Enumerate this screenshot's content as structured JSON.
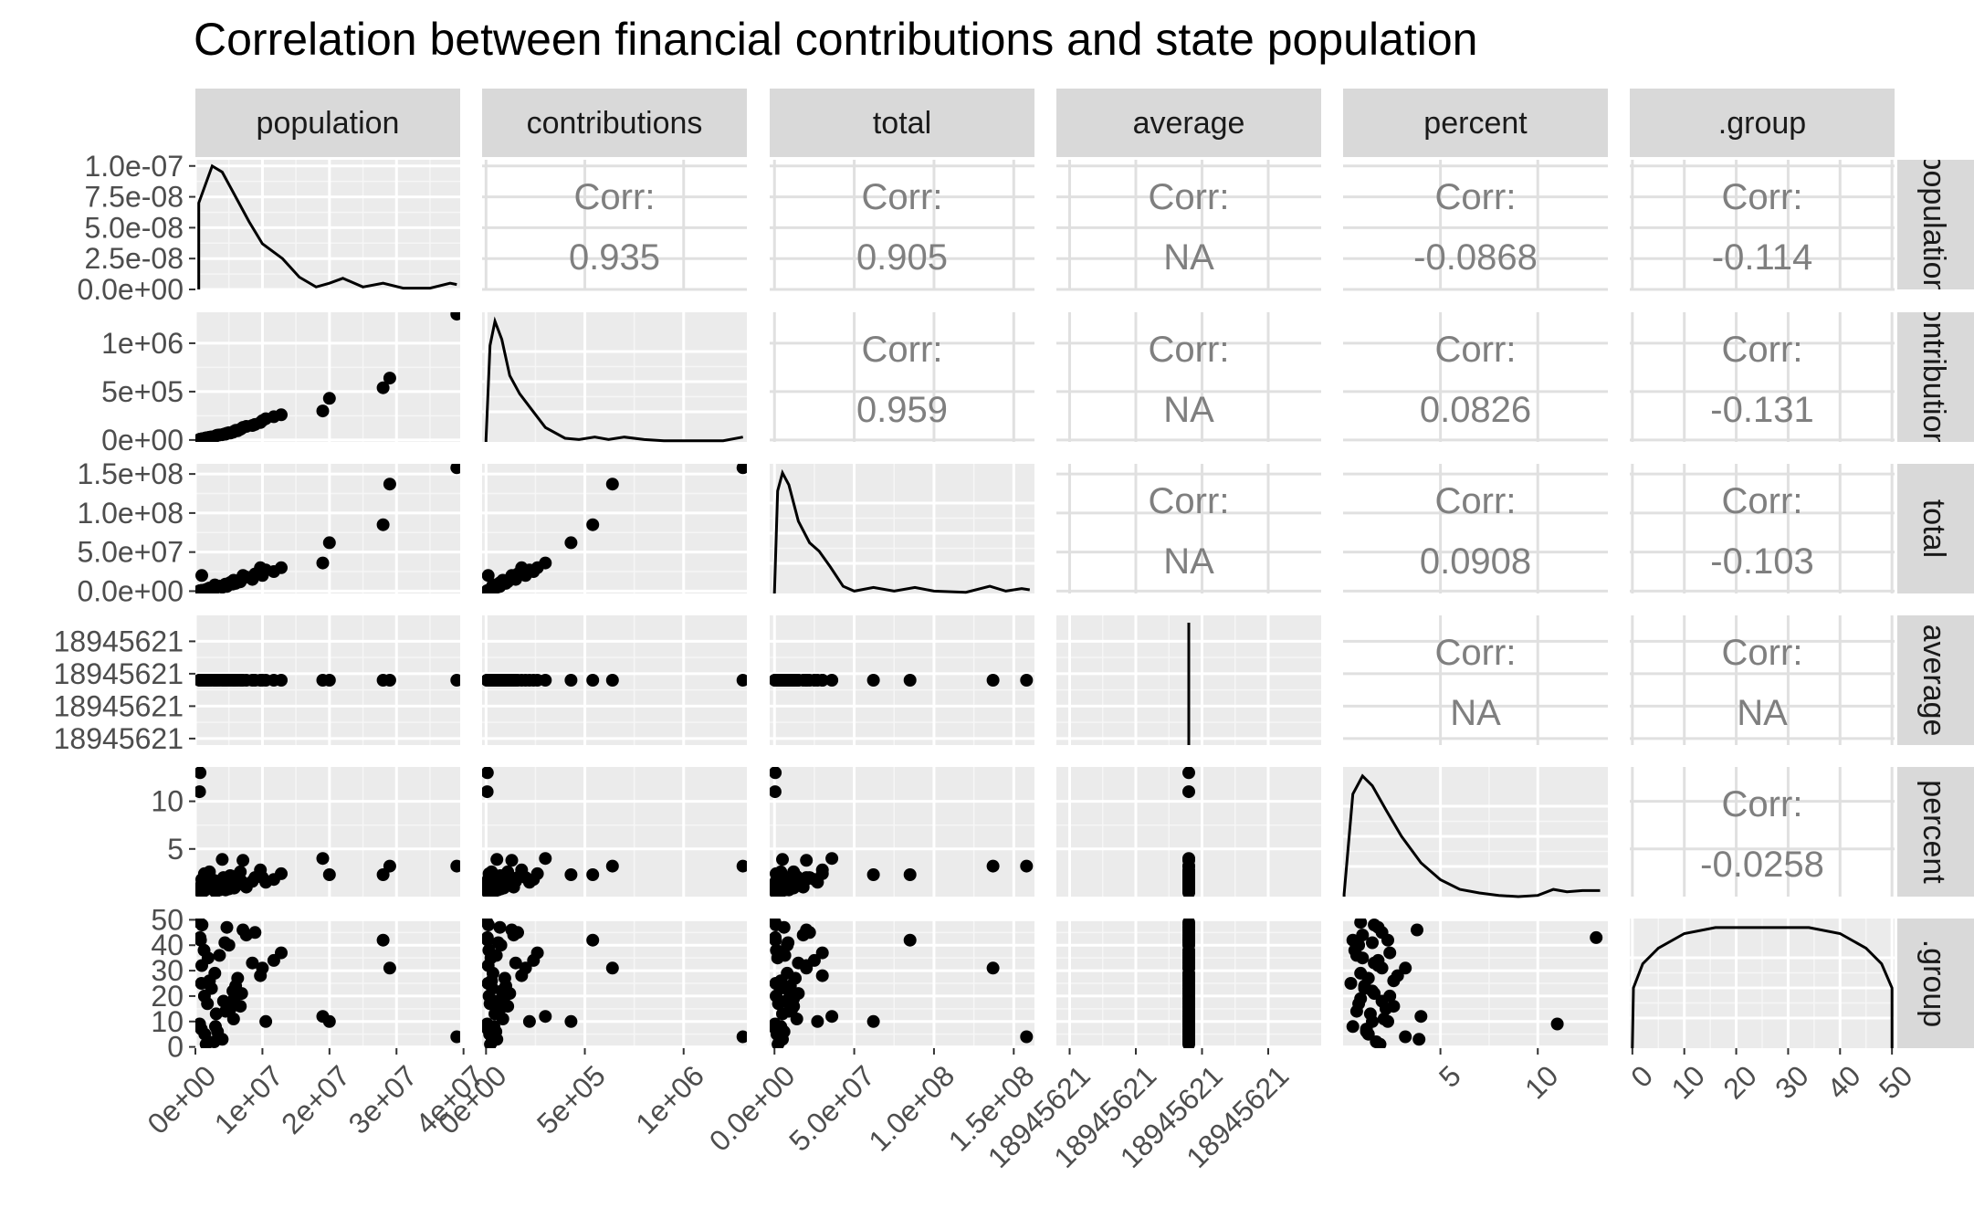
{
  "chart_data": {
    "type": "scatter",
    "subtype": "pairs-plot-matrix",
    "title": "Correlation between financial contributions and state population",
    "variables": [
      "population",
      "contributions",
      "total",
      "average",
      "percent",
      ".group"
    ],
    "row_strip_labels": [
      "population",
      "contributions",
      "total",
      "average",
      "percent",
      ".group"
    ],
    "corr_label": "Corr:",
    "correlations": [
      {
        "row": "contributions",
        "col": "population",
        "value": "0.935"
      },
      {
        "row": "total",
        "col": "population",
        "value": "0.905"
      },
      {
        "row": "average",
        "col": "population",
        "value": "NA"
      },
      {
        "row": "percent",
        "col": "population",
        "value": "-0.0868"
      },
      {
        "row": ".group",
        "col": "population",
        "value": "-0.114"
      },
      {
        "row": "total",
        "col": "contributions",
        "value": "0.959"
      },
      {
        "row": "average",
        "col": "contributions",
        "value": "NA"
      },
      {
        "row": "percent",
        "col": "contributions",
        "value": "0.0826"
      },
      {
        "row": ".group",
        "col": "contributions",
        "value": "-0.131"
      },
      {
        "row": "average",
        "col": "total",
        "value": "NA"
      },
      {
        "row": "percent",
        "col": "total",
        "value": "0.0908"
      },
      {
        "row": ".group",
        "col": "total",
        "value": "-0.103"
      },
      {
        "row": "percent",
        "col": "average",
        "value": "NA"
      },
      {
        "row": ".group",
        "col": "average",
        "value": "NA"
      },
      {
        "row": ".group",
        "col": "percent",
        "value": "-0.0258"
      }
    ],
    "axes": {
      "population": {
        "range": [
          0,
          39500000
        ],
        "ticks": [
          0,
          10000000,
          20000000,
          30000000,
          40000000
        ],
        "tick_labels": [
          "0e+00",
          "1e+07",
          "2e+07",
          "3e+07",
          "4e+07"
        ]
      },
      "contributions": {
        "range": [
          -20000,
          1320000
        ],
        "ticks": [
          0,
          500000,
          1000000
        ],
        "tick_labels": [
          "0e+00",
          "5e+05",
          "1e+06"
        ]
      },
      "total": {
        "range": [
          -3000000,
          163000000
        ],
        "ticks": [
          0,
          50000000,
          100000000,
          150000000
        ],
        "tick_labels": [
          "0.0e+00",
          "5.0e+07",
          "1.0e+08",
          "1.5e+08"
        ]
      },
      "average": {
        "range": [
          0,
          1
        ],
        "ticks": [
          0.05,
          0.3,
          0.55,
          0.8
        ],
        "tick_labels": [
          "18945621",
          "18945621",
          "18945621",
          "18945621"
        ]
      },
      "percent": {
        "range": [
          0,
          13.6
        ],
        "ticks": [
          5,
          10
        ],
        "tick_labels": [
          "5",
          "10"
        ]
      },
      ".group": {
        "range": [
          -0.5,
          50.5
        ],
        "ticks": [
          0,
          10,
          20,
          30,
          40,
          50
        ],
        "tick_labels": [
          "0",
          "10",
          "20",
          "30",
          "40",
          "50"
        ]
      }
    },
    "density_y_axis": {
      "range": [
        0,
        1.05e-07
      ],
      "ticks": [
        0,
        2.5e-08,
        5e-08,
        7.5e-08,
        1e-07
      ],
      "tick_labels": [
        "0.0e+00",
        "2.5e-08",
        "5.0e-08",
        "7.5e-08",
        "1.0e-07"
      ]
    },
    "densities": {
      "population": {
        "x": [
          500000,
          2500000,
          4000000,
          6000000,
          8000000,
          10000000,
          13000000,
          15500000,
          18000000,
          20000000,
          22000000,
          25000000,
          28000000,
          31000000,
          35000000,
          38000000,
          39000000
        ],
        "y": [
          7e-08,
          1e-07,
          9.5e-08,
          7.5e-08,
          5.5e-08,
          3.7e-08,
          2.5e-08,
          1e-08,
          2e-09,
          5e-09,
          9e-09,
          2e-09,
          5e-09,
          1e-09,
          1e-09,
          5e-09,
          4e-09
        ]
      },
      "contributions": {
        "x": [
          0,
          20000,
          45000,
          80000,
          120000,
          170000,
          230000,
          300000,
          400000,
          470000,
          550000,
          620000,
          700000,
          800000,
          900000,
          1000000,
          1100000,
          1200000,
          1300000
        ],
        "y": [
          0.02,
          0.8,
          1.0,
          0.85,
          0.55,
          0.4,
          0.27,
          0.12,
          0.03,
          0.02,
          0.04,
          0.02,
          0.04,
          0.02,
          0.01,
          0.01,
          0.01,
          0.01,
          0.04
        ]
      },
      "total": {
        "x": [
          0,
          2000000,
          5000000,
          9000000,
          15000000,
          22000000,
          28000000,
          35000000,
          43000000,
          50000000,
          62000000,
          75000000,
          88000000,
          100000000,
          120000000,
          135000000,
          145000000,
          155000000,
          160000000
        ],
        "y": [
          0,
          0.85,
          1.0,
          0.9,
          0.6,
          0.42,
          0.35,
          0.22,
          0.06,
          0.02,
          0.05,
          0.02,
          0.05,
          0.02,
          0.01,
          0.06,
          0.02,
          0.04,
          0.03
        ]
      },
      "percent": {
        "x": [
          0.05,
          0.5,
          1,
          1.5,
          2.2,
          3,
          4,
          5,
          6,
          7,
          8,
          9,
          10,
          10.8,
          11.5,
          12.3,
          13.2
        ],
        "y": [
          0.02,
          0.85,
          1.0,
          0.92,
          0.72,
          0.5,
          0.28,
          0.14,
          0.06,
          0.03,
          0.01,
          0.0,
          0.01,
          0.06,
          0.04,
          0.05,
          0.05
        ]
      },
      ".group": {
        "x": [
          0,
          0.2,
          2,
          5,
          10,
          16,
          25,
          34,
          40,
          45,
          48,
          50,
          50
        ],
        "y": [
          0,
          0.5,
          0.7,
          0.83,
          0.95,
          1.0,
          1.0,
          1.0,
          0.95,
          0.83,
          0.7,
          0.5,
          0
        ]
      }
    },
    "observations": [
      [
        39000000,
        1300000,
        158000000,
        0.5,
        3.2,
        4
      ],
      [
        29000000,
        640000,
        137000000,
        0.5,
        3.2,
        31
      ],
      [
        28000000,
        540000,
        85000000,
        0.5,
        2.3,
        42
      ],
      [
        20000000,
        430000,
        62000000,
        0.5,
        2.3,
        10
      ],
      [
        19000000,
        300000,
        36000000,
        0.5,
        4.0,
        12
      ],
      [
        12800000,
        260000,
        30000000,
        0.5,
        2.4,
        37
      ],
      [
        11700000,
        240000,
        25000000,
        0.5,
        1.8,
        34
      ],
      [
        10500000,
        220000,
        27000000,
        0.5,
        1.5,
        10
      ],
      [
        10000000,
        200000,
        20000000,
        0.5,
        2.0,
        31
      ],
      [
        9700000,
        180000,
        30000000,
        0.5,
        2.8,
        28
      ],
      [
        8900000,
        160000,
        22000000,
        0.5,
        2.0,
        45
      ],
      [
        8500000,
        150000,
        15000000,
        0.5,
        1.6,
        33
      ],
      [
        7600000,
        140000,
        18000000,
        0.5,
        1.0,
        44
      ],
      [
        7100000,
        130000,
        20000000,
        0.5,
        3.8,
        46
      ],
      [
        6900000,
        120000,
        15000000,
        0.5,
        1.6,
        21
      ],
      [
        6700000,
        110000,
        12000000,
        0.5,
        2.6,
        16
      ],
      [
        6000000,
        100000,
        10000000,
        0.5,
        1.1,
        24
      ],
      [
        5800000,
        90000,
        12000000,
        0.5,
        0.9,
        19
      ],
      [
        5700000,
        85000,
        14000000,
        0.5,
        2.1,
        11
      ],
      [
        5600000,
        80000,
        9000000,
        0.5,
        1.5,
        22
      ],
      [
        5000000,
        75000,
        8000000,
        0.5,
        0.8,
        40
      ],
      [
        4700000,
        70000,
        6000000,
        0.5,
        1.8,
        47
      ],
      [
        4500000,
        60000,
        9000000,
        0.5,
        0.7,
        14
      ],
      [
        4200000,
        58000,
        7000000,
        0.5,
        2.0,
        18
      ],
      [
        4000000,
        55000,
        5000000,
        0.5,
        3.9,
        3
      ],
      [
        3300000,
        50000,
        6000000,
        0.5,
        1.2,
        6
      ],
      [
        3100000,
        45000,
        5000000,
        0.5,
        1.4,
        13
      ],
      [
        3000000,
        40000,
        4000000,
        0.5,
        0.5,
        8
      ],
      [
        2900000,
        35000,
        8000000,
        0.5,
        0.9,
        29
      ],
      [
        2800000,
        30000,
        3000000,
        0.5,
        1.7,
        2
      ],
      [
        2100000,
        28000,
        4000000,
        0.5,
        2.6,
        26
      ],
      [
        1900000,
        25000,
        2000000,
        0.5,
        1.0,
        35
      ],
      [
        1800000,
        20000,
        2500000,
        0.5,
        0.8,
        17
      ],
      [
        1400000,
        18000,
        1500000,
        0.5,
        1.3,
        5
      ],
      [
        1350000,
        15000,
        1000000,
        0.5,
        2.4,
        20
      ],
      [
        1300000,
        14000,
        1200000,
        0.5,
        0.6,
        38
      ],
      [
        1000000,
        12000,
        900000,
        0.5,
        1.6,
        48
      ],
      [
        900000,
        10000,
        800000,
        0.5,
        0.4,
        25
      ],
      [
        880000,
        9000,
        700000,
        0.5,
        1.2,
        7
      ],
      [
        760000,
        8000,
        600000,
        0.5,
        0.5,
        42
      ],
      [
        700000,
        7000,
        500000,
        0.5,
        13.0,
        43
      ],
      [
        620000,
        6000,
        400000,
        0.5,
        11.0,
        9
      ],
      [
        580000,
        5000,
        300000,
        0.5,
        0.9,
        49
      ],
      [
        1600000,
        22000,
        2200000,
        0.5,
        1.9,
        1
      ],
      [
        2400000,
        32000,
        3500000,
        0.5,
        1.1,
        23
      ],
      [
        3600000,
        52000,
        6500000,
        0.5,
        0.7,
        36
      ],
      [
        4400000,
        62000,
        8500000,
        0.5,
        1.5,
        41
      ],
      [
        5200000,
        72000,
        11000000,
        0.5,
        2.2,
        15
      ],
      [
        6300000,
        95000,
        13000000,
        0.5,
        1.3,
        27
      ],
      [
        950000,
        11000,
        20000000,
        0.5,
        1.8,
        32
      ]
    ],
    "grid": true,
    "legend": "none"
  }
}
